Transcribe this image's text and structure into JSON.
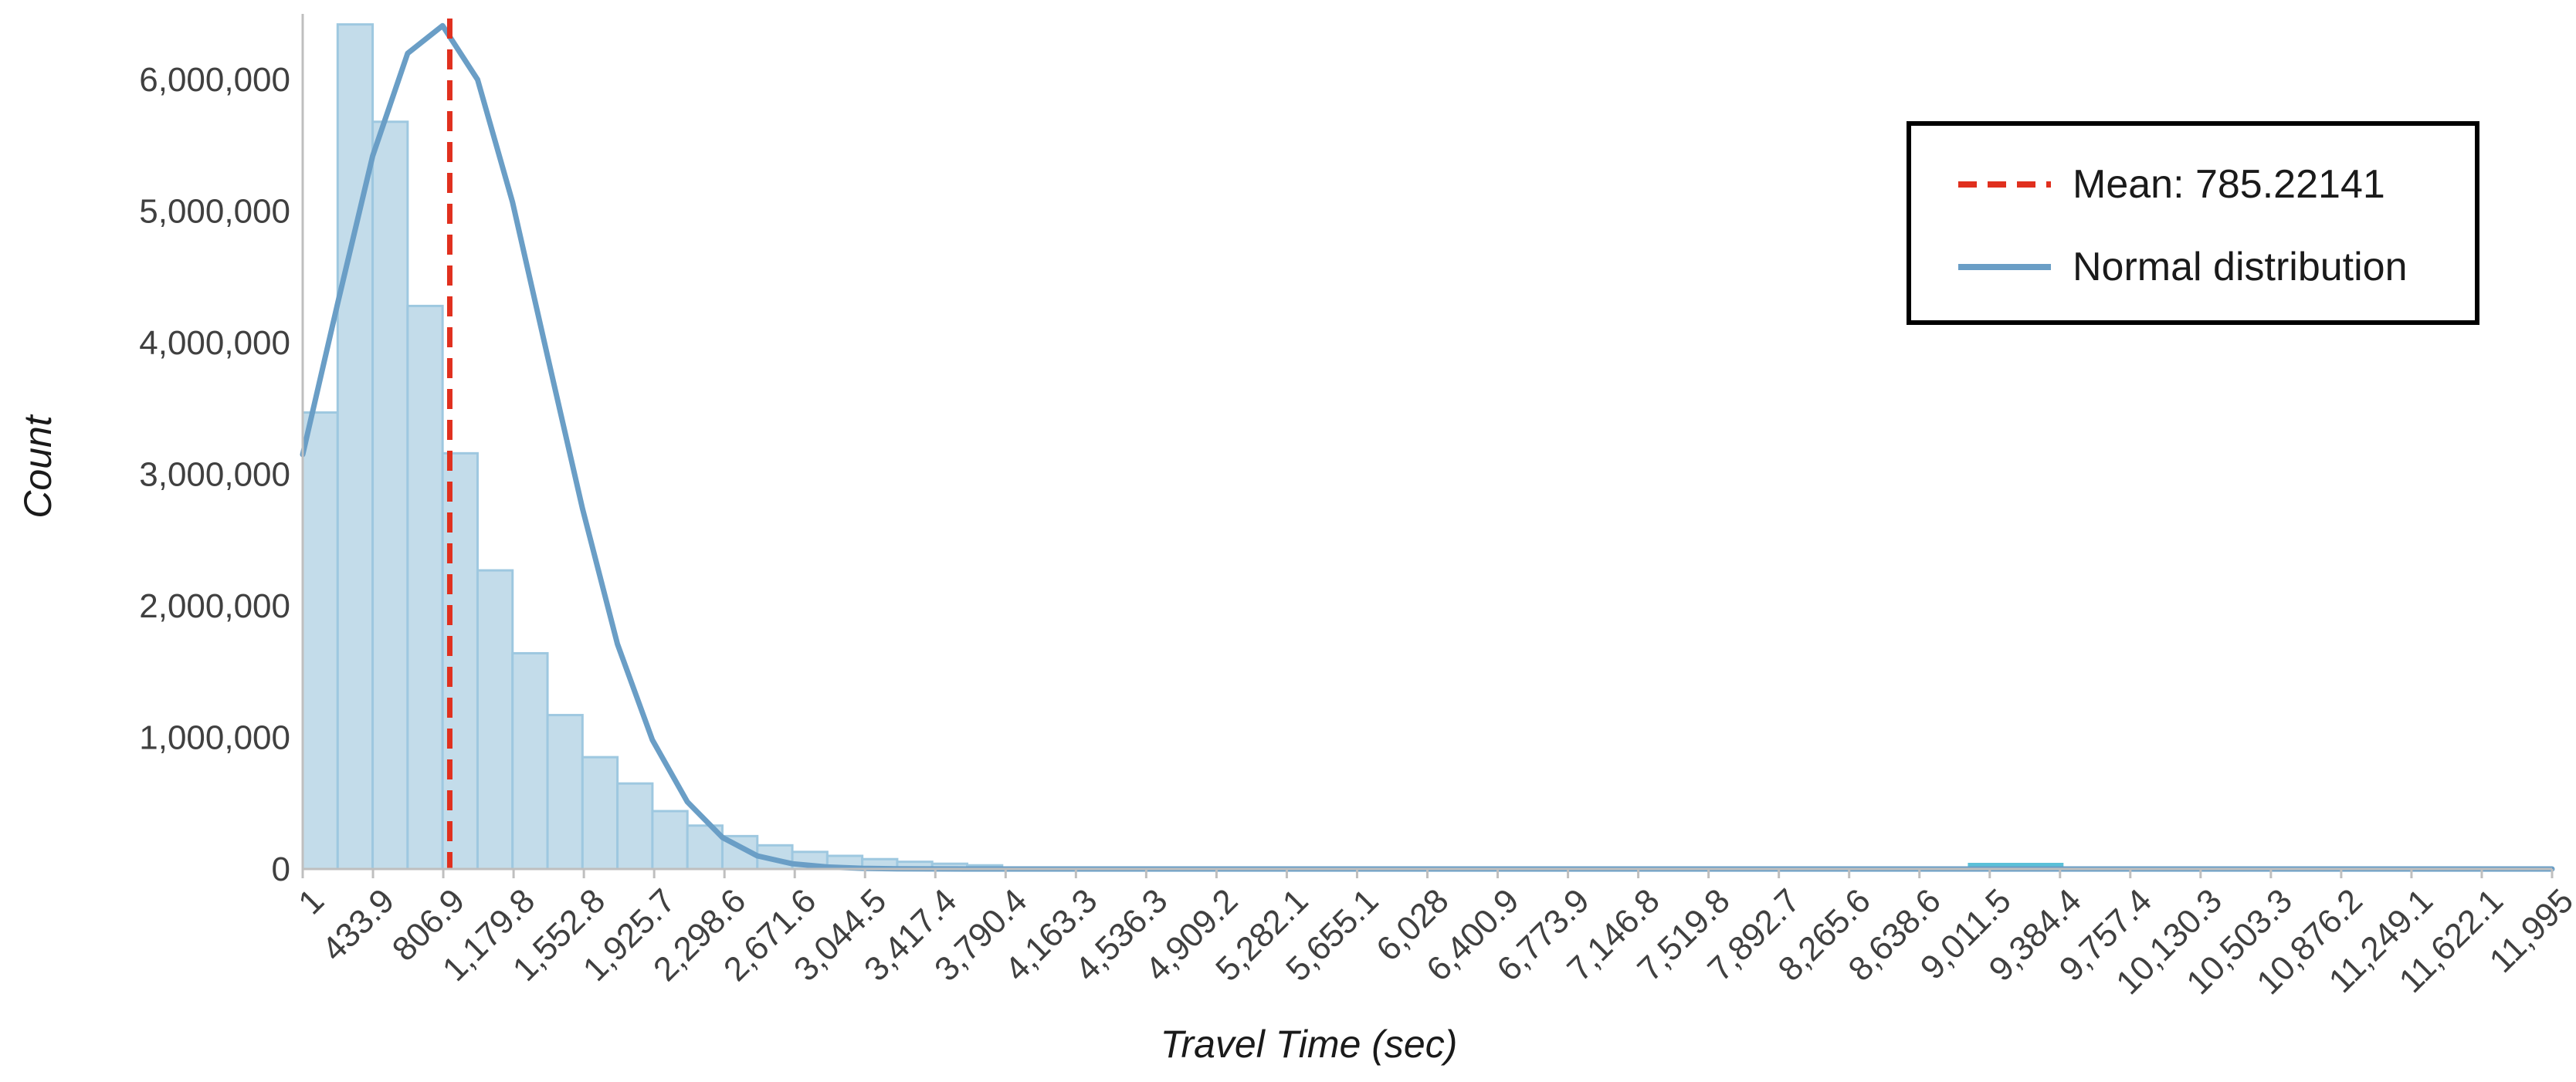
{
  "chart_data": {
    "type": "bar",
    "xlabel": "Travel Time (sec)",
    "ylabel": "Count",
    "ylim": [
      0,
      6500000
    ],
    "grid": false,
    "legend_position": "top-right",
    "y_ticks": [
      0,
      1000000,
      2000000,
      3000000,
      4000000,
      5000000,
      6000000
    ],
    "y_tick_labels": [
      "0",
      "1,000,000",
      "2,000,000",
      "3,000,000",
      "4,000,000",
      "5,000,000",
      "6,000,000"
    ],
    "x_tick_labels": [
      "1",
      "433.9",
      "806.9",
      "1,179.8",
      "1,552.8",
      "1,925.7",
      "2,298.6",
      "2,671.6",
      "3,044.5",
      "3,417.4",
      "3,790.4",
      "4,163.3",
      "4,536.3",
      "4,909.2",
      "5,282.1",
      "5,655.1",
      "6,028",
      "6,400.9",
      "6,773.9",
      "7,146.8",
      "7,519.8",
      "7,892.7",
      "8,265.6",
      "8,638.6",
      "9,011.5",
      "9,384.4",
      "9,757.4",
      "10,130.3",
      "10,503.3",
      "10,876.2",
      "11,249.1",
      "11,622.1",
      "11,995"
    ],
    "x_range": [
      1,
      11995
    ],
    "histogram": {
      "name": "Count",
      "color": "#c3dcea",
      "edge_color": "#9ec8e0",
      "bin_edges": [
        1,
        187.5,
        374,
        560.4,
        746.9,
        933.4,
        1119.9,
        1306.4,
        1492.8,
        1679.3,
        1865.8,
        2052.3,
        2238.7,
        2425.2,
        2611.7,
        2798.2,
        2984.7,
        3171.1,
        3357.6,
        3544.1,
        3730.6
      ],
      "values": [
        3470000,
        6420000,
        5680000,
        4280000,
        3160000,
        2270000,
        1640000,
        1170000,
        850000,
        650000,
        440000,
        330000,
        250000,
        180000,
        130000,
        100000,
        75000,
        55000,
        40000,
        28000
      ]
    },
    "series": [
      {
        "name": "Normal distribution",
        "type": "line",
        "color": "#6a9ec6",
        "x": [
          1,
          187.5,
          374,
          560.4,
          746.9,
          933.4,
          1119.9,
          1306.4,
          1492.8,
          1679.3,
          1865.8,
          2052.3,
          2238.7,
          2425.2,
          2611.7,
          2798.2,
          2984.7,
          3171.1,
          3357.6,
          3544.1,
          3730.6,
          11995
        ],
        "values": [
          3150000,
          4300000,
          5420000,
          6200000,
          6410000,
          6000000,
          5070000,
          3900000,
          2740000,
          1710000,
          980000,
          510000,
          240000,
          100000,
          40000,
          15000,
          5000,
          1500,
          400,
          100,
          0,
          0
        ]
      }
    ],
    "mean_line": {
      "label": "Mean: 785.22141",
      "value": 785.22141,
      "color": "#e0301e"
    },
    "annotation_segment": {
      "color": "#5bc0d8",
      "x_start": 8880,
      "x_end": 9390
    }
  }
}
